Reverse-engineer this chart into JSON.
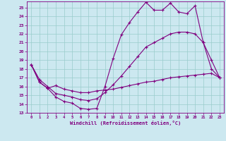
{
  "xlabel": "Windchill (Refroidissement éolien,°C)",
  "background_color": "#cce8f0",
  "line_color": "#800080",
  "grid_color": "#99cccc",
  "xlim": [
    -0.5,
    23.5
  ],
  "ylim": [
    13,
    25.7
  ],
  "yticks": [
    13,
    14,
    15,
    16,
    17,
    18,
    19,
    20,
    21,
    22,
    23,
    24,
    25
  ],
  "xticks": [
    0,
    1,
    2,
    3,
    4,
    5,
    6,
    7,
    8,
    9,
    10,
    11,
    12,
    13,
    14,
    15,
    16,
    17,
    18,
    19,
    20,
    21,
    22,
    23
  ],
  "line1_x": [
    0,
    1,
    2,
    3,
    4,
    5,
    6,
    7,
    8,
    9,
    10,
    11,
    12,
    13,
    14,
    15,
    16,
    17,
    18,
    19,
    20,
    21,
    22,
    23
  ],
  "line1_y": [
    18.5,
    16.5,
    15.8,
    14.8,
    14.3,
    14.1,
    13.5,
    13.4,
    13.5,
    16.0,
    19.2,
    21.9,
    23.3,
    24.5,
    25.6,
    24.7,
    24.7,
    25.5,
    24.5,
    24.3,
    25.2,
    21.0,
    18.0,
    17.0
  ],
  "line2_x": [
    0,
    1,
    2,
    3,
    4,
    5,
    6,
    7,
    8,
    9,
    10,
    11,
    12,
    13,
    14,
    15,
    16,
    17,
    18,
    19,
    20,
    21,
    22,
    23
  ],
  "line2_y": [
    18.5,
    16.8,
    16.0,
    15.2,
    15.0,
    14.8,
    14.5,
    14.4,
    14.6,
    15.3,
    16.2,
    17.2,
    18.3,
    19.4,
    20.5,
    21.0,
    21.5,
    22.0,
    22.2,
    22.2,
    22.0,
    21.0,
    19.0,
    17.0
  ],
  "line3_x": [
    0,
    1,
    2,
    3,
    4,
    5,
    6,
    7,
    8,
    9,
    10,
    11,
    12,
    13,
    14,
    15,
    16,
    17,
    18,
    19,
    20,
    21,
    22,
    23
  ],
  "line3_y": [
    18.5,
    16.5,
    15.8,
    16.1,
    15.7,
    15.5,
    15.3,
    15.3,
    15.5,
    15.6,
    15.7,
    15.9,
    16.1,
    16.3,
    16.5,
    16.6,
    16.8,
    17.0,
    17.1,
    17.2,
    17.3,
    17.4,
    17.5,
    17.0
  ]
}
